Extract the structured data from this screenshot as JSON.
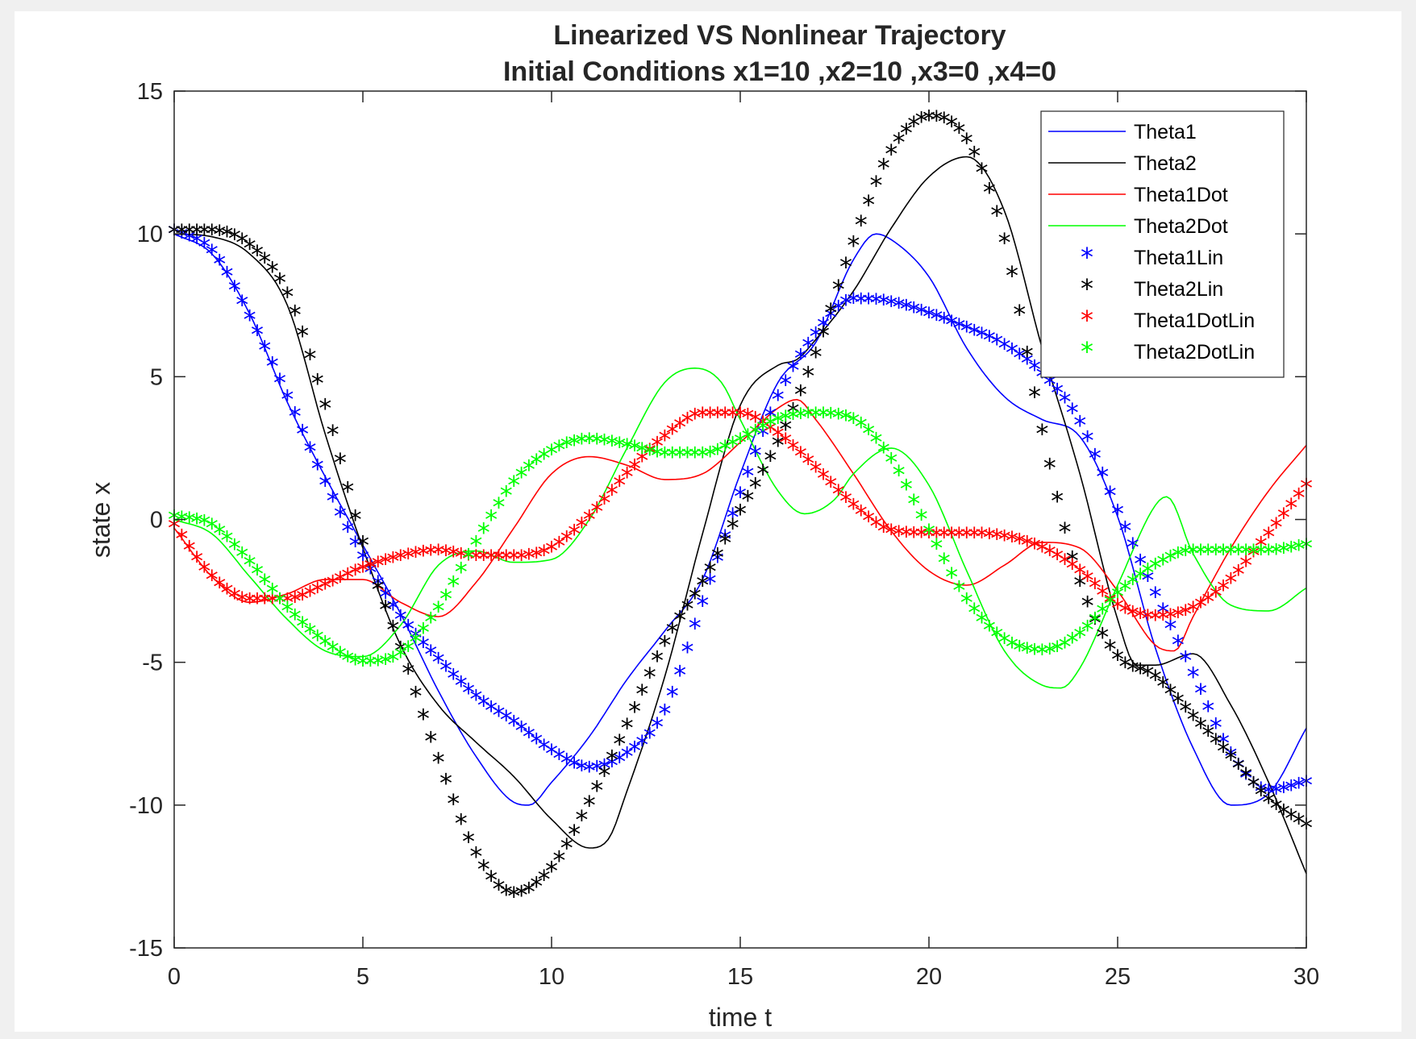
{
  "chart_data": {
    "type": "line",
    "title": "Linearized VS Nonlinear Trajectory",
    "subtitle": "Initial Conditions x1=10 ,x2=10 ,x3=0 ,x4=0",
    "xlabel": "time t",
    "ylabel": "state x",
    "xlim": [
      0,
      30
    ],
    "ylim": [
      -15,
      15
    ],
    "xticks": [
      "0",
      "5",
      "10",
      "15",
      "20",
      "25",
      "30"
    ],
    "yticks": [
      "-15",
      "-10",
      "-5",
      "0",
      "5",
      "10",
      "15"
    ],
    "grid": false,
    "legend_position": "top-right",
    "series": [
      {
        "name": "Theta1",
        "style": "line",
        "color": "#0000ff",
        "points": [
          [
            0,
            10
          ],
          [
            1,
            9.3
          ],
          [
            2,
            7.2
          ],
          [
            3,
            4.1
          ],
          [
            4,
            1.5
          ],
          [
            5,
            -0.9
          ],
          [
            6,
            -3.3
          ],
          [
            7,
            -6.0
          ],
          [
            8,
            -8.3
          ],
          [
            9,
            -9.9
          ],
          [
            9.4,
            -10.0
          ],
          [
            10,
            -9.2
          ],
          [
            11,
            -7.6
          ],
          [
            12,
            -5.6
          ],
          [
            13,
            -3.9
          ],
          [
            14,
            -2.1
          ],
          [
            15,
            1.6
          ],
          [
            16,
            4.8
          ],
          [
            17,
            6.2
          ],
          [
            18,
            9.1
          ],
          [
            18.6,
            10.0
          ],
          [
            19,
            9.8
          ],
          [
            20,
            8.5
          ],
          [
            21,
            6.0
          ],
          [
            22,
            4.3
          ],
          [
            23,
            3.5
          ],
          [
            24,
            2.9
          ],
          [
            25,
            0.1
          ],
          [
            26,
            -4.5
          ],
          [
            27,
            -8.0
          ],
          [
            28,
            -10.0
          ],
          [
            29,
            -9.6
          ],
          [
            30,
            -7.3
          ]
        ]
      },
      {
        "name": "Theta2",
        "style": "line",
        "color": "#000000",
        "points": [
          [
            0,
            10
          ],
          [
            1,
            9.9
          ],
          [
            2,
            9.3
          ],
          [
            3,
            7.5
          ],
          [
            4,
            3.0
          ],
          [
            5,
            -1.0
          ],
          [
            6,
            -4.4
          ],
          [
            7,
            -6.5
          ],
          [
            8,
            -7.8
          ],
          [
            9,
            -9.0
          ],
          [
            10,
            -10.5
          ],
          [
            11,
            -11.5
          ],
          [
            11.5,
            -11.2
          ],
          [
            12,
            -9.5
          ],
          [
            13,
            -5.5
          ],
          [
            14,
            -0.5
          ],
          [
            15,
            4.0
          ],
          [
            16,
            5.4
          ],
          [
            16.5,
            5.6
          ],
          [
            17,
            6.3
          ],
          [
            18,
            8.0
          ],
          [
            19,
            10.2
          ],
          [
            20,
            12.0
          ],
          [
            21,
            12.7
          ],
          [
            22,
            10.8
          ],
          [
            23,
            6.0
          ],
          [
            24,
            1.6
          ],
          [
            25,
            -3.5
          ],
          [
            25.5,
            -5.1
          ],
          [
            26,
            -5.1
          ],
          [
            27,
            -4.7
          ],
          [
            28,
            -6.5
          ],
          [
            29,
            -9.2
          ],
          [
            30,
            -12.4
          ]
        ]
      },
      {
        "name": "Theta1Dot",
        "style": "line",
        "color": "#ff0000",
        "points": [
          [
            0,
            -0.3
          ],
          [
            1,
            -2.0
          ],
          [
            2,
            -2.9
          ],
          [
            3,
            -2.6
          ],
          [
            4,
            -2.1
          ],
          [
            5,
            -2.1
          ],
          [
            6,
            -2.9
          ],
          [
            7,
            -3.4
          ],
          [
            8,
            -2.2
          ],
          [
            9,
            -0.3
          ],
          [
            10,
            1.6
          ],
          [
            11,
            2.2
          ],
          [
            12,
            1.9
          ],
          [
            13,
            1.4
          ],
          [
            14,
            1.6
          ],
          [
            15,
            2.7
          ],
          [
            16,
            3.9
          ],
          [
            16.5,
            4.2
          ],
          [
            17,
            3.5
          ],
          [
            18,
            1.6
          ],
          [
            19,
            -0.4
          ],
          [
            20,
            -1.8
          ],
          [
            21,
            -2.3
          ],
          [
            22,
            -1.6
          ],
          [
            23,
            -0.8
          ],
          [
            24,
            -1.0
          ],
          [
            25,
            -2.5
          ],
          [
            26,
            -4.4
          ],
          [
            26.5,
            -4.6
          ],
          [
            27,
            -3.4
          ],
          [
            28,
            -1.0
          ],
          [
            29,
            1.0
          ],
          [
            30,
            2.6
          ]
        ]
      },
      {
        "name": "Theta2Dot",
        "style": "line",
        "color": "#00ff00",
        "points": [
          [
            0,
            0
          ],
          [
            1,
            -0.5
          ],
          [
            2,
            -2.0
          ],
          [
            3,
            -3.5
          ],
          [
            4,
            -4.6
          ],
          [
            5,
            -4.8
          ],
          [
            6,
            -3.7
          ],
          [
            7,
            -1.6
          ],
          [
            8,
            -1.1
          ],
          [
            9,
            -1.5
          ],
          [
            10,
            -1.4
          ],
          [
            11,
            0
          ],
          [
            12,
            2.5
          ],
          [
            13,
            4.8
          ],
          [
            13.8,
            5.3
          ],
          [
            14.5,
            4.8
          ],
          [
            15,
            3.5
          ],
          [
            16,
            1.0
          ],
          [
            16.7,
            0.2
          ],
          [
            17.5,
            0.7
          ],
          [
            18,
            1.6
          ],
          [
            19,
            2.5
          ],
          [
            20,
            1.2
          ],
          [
            21,
            -1.8
          ],
          [
            22,
            -4.6
          ],
          [
            23,
            -5.8
          ],
          [
            23.5,
            -5.9
          ],
          [
            24,
            -5.2
          ],
          [
            25,
            -2.3
          ],
          [
            26,
            0.5
          ],
          [
            26.3,
            0.8
          ],
          [
            27,
            -1.2
          ],
          [
            28,
            -3.0
          ],
          [
            29,
            -3.2
          ],
          [
            30,
            -2.4
          ]
        ]
      },
      {
        "name": "Theta1Lin",
        "style": "marker",
        "color": "#0000ff",
        "points": [
          [
            0,
            10
          ],
          [
            1,
            9.3
          ],
          [
            2,
            7.0
          ],
          [
            3,
            4.2
          ],
          [
            4,
            1.2
          ],
          [
            5,
            -1.4
          ],
          [
            6,
            -3.5
          ],
          [
            7,
            -5.0
          ],
          [
            8,
            -6.3
          ],
          [
            9,
            -7.2
          ],
          [
            10,
            -8.2
          ],
          [
            11,
            -8.8
          ],
          [
            12,
            -8.3
          ],
          [
            13,
            -6.8
          ],
          [
            14,
            -3.0
          ],
          [
            15,
            0.8
          ],
          [
            16,
            4.2
          ],
          [
            17,
            6.4
          ],
          [
            18,
            7.6
          ],
          [
            19,
            7.5
          ],
          [
            20,
            7.1
          ],
          [
            21,
            6.6
          ],
          [
            22,
            6.0
          ],
          [
            23,
            5.0
          ],
          [
            24,
            3.3
          ],
          [
            25,
            0.2
          ],
          [
            26,
            -2.7
          ],
          [
            27,
            -5.5
          ],
          [
            28,
            -8.3
          ],
          [
            29,
            -9.6
          ],
          [
            30,
            -9.3
          ]
        ]
      },
      {
        "name": "Theta2Lin",
        "style": "marker",
        "color": "#000000",
        "points": [
          [
            0,
            10
          ],
          [
            1,
            10.0
          ],
          [
            2,
            9.5
          ],
          [
            3,
            7.8
          ],
          [
            4,
            3.9
          ],
          [
            5,
            -0.9
          ],
          [
            6,
            -4.6
          ],
          [
            7,
            -8.5
          ],
          [
            8,
            -11.8
          ],
          [
            9,
            -13.2
          ],
          [
            10,
            -12.3
          ],
          [
            11,
            -10.0
          ],
          [
            12,
            -7.3
          ],
          [
            13,
            -4.4
          ],
          [
            14,
            -2.3
          ],
          [
            15,
            0.2
          ],
          [
            16,
            2.6
          ],
          [
            17,
            5.7
          ],
          [
            18,
            9.6
          ],
          [
            19,
            12.8
          ],
          [
            20,
            14.0
          ],
          [
            21,
            13.2
          ],
          [
            22,
            9.7
          ],
          [
            23,
            3.0
          ],
          [
            24,
            -2.3
          ],
          [
            25,
            -4.9
          ],
          [
            26,
            -5.6
          ],
          [
            27,
            -7.0
          ],
          [
            28,
            -8.4
          ],
          [
            29,
            -9.9
          ],
          [
            30,
            -10.8
          ]
        ]
      },
      {
        "name": "Theta1DotLin",
        "style": "marker",
        "color": "#ff0000",
        "points": [
          [
            0,
            -0.3
          ],
          [
            1,
            -2.1
          ],
          [
            2,
            -2.9
          ],
          [
            3,
            -2.9
          ],
          [
            4,
            -2.4
          ],
          [
            5,
            -1.8
          ],
          [
            6,
            -1.4
          ],
          [
            7,
            -1.2
          ],
          [
            8,
            -1.4
          ],
          [
            9,
            -1.4
          ],
          [
            10,
            -1.1
          ],
          [
            11,
            0
          ],
          [
            12,
            1.5
          ],
          [
            13,
            2.8
          ],
          [
            14,
            3.6
          ],
          [
            15,
            3.6
          ],
          [
            16,
            2.9
          ],
          [
            17,
            1.7
          ],
          [
            18,
            0.4
          ],
          [
            19,
            -0.5
          ],
          [
            20,
            -0.6
          ],
          [
            21,
            -0.6
          ],
          [
            22,
            -0.7
          ],
          [
            23,
            -1.1
          ],
          [
            24,
            -1.9
          ],
          [
            25,
            -3.1
          ],
          [
            26,
            -3.5
          ],
          [
            27,
            -3.2
          ],
          [
            28,
            -2.2
          ],
          [
            29,
            -0.6
          ],
          [
            30,
            1.1
          ]
        ]
      },
      {
        "name": "Theta2DotLin",
        "style": "marker",
        "color": "#00ff00",
        "points": [
          [
            0,
            0
          ],
          [
            1,
            -0.3
          ],
          [
            2,
            -1.6
          ],
          [
            3,
            -3.2
          ],
          [
            4,
            -4.4
          ],
          [
            5,
            -5.1
          ],
          [
            6,
            -4.8
          ],
          [
            7,
            -3.2
          ],
          [
            8,
            -0.9
          ],
          [
            9,
            1.2
          ],
          [
            10,
            2.3
          ],
          [
            11,
            2.7
          ],
          [
            12,
            2.5
          ],
          [
            13,
            2.2
          ],
          [
            14,
            2.2
          ],
          [
            15,
            2.7
          ],
          [
            16,
            3.4
          ],
          [
            17,
            3.6
          ],
          [
            18,
            3.4
          ],
          [
            19,
            2.0
          ],
          [
            20,
            -0.5
          ],
          [
            21,
            -2.9
          ],
          [
            22,
            -4.3
          ],
          [
            23,
            -4.7
          ],
          [
            24,
            -4.1
          ],
          [
            25,
            -2.7
          ],
          [
            26,
            -1.7
          ],
          [
            27,
            -1.2
          ],
          [
            28,
            -1.2
          ],
          [
            29,
            -1.2
          ],
          [
            30,
            -1.0
          ]
        ]
      }
    ]
  }
}
